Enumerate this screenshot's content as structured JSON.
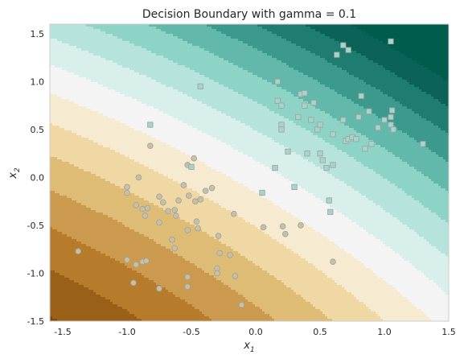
{
  "chart_data": {
    "type": "scatter",
    "title": "Decision Boundary with gamma = 0.1",
    "xlabel": "x",
    "xlabel_sub": "1",
    "ylabel": "x",
    "ylabel_sub": "2",
    "xlim": [
      -1.6,
      1.5
    ],
    "ylim": [
      -1.5,
      1.6
    ],
    "xticks": [
      "-1.5",
      "-1.0",
      "-0.5",
      "0.0",
      "0.5",
      "1.0",
      "1.5"
    ],
    "yticks": [
      "-1.5",
      "-1.0",
      "-0.5",
      "0.0",
      "0.5",
      "1.0",
      "1.5"
    ],
    "grid": false,
    "background": {
      "kind": "filled-contour",
      "colormap": "BrBG",
      "colors": [
        "#7e4a10",
        "#9a6018",
        "#b77b2c",
        "#cb9a4e",
        "#dfbc76",
        "#efd8a3",
        "#f6ebd1",
        "#f3f4f3",
        "#d8efeb",
        "#b6e3db",
        "#8dd3c6",
        "#62b8aa",
        "#3c9a8d",
        "#1e7c70",
        "#0a6356",
        "#005c4d"
      ]
    },
    "series": [
      {
        "marker": "circle",
        "color": "#c8c0a3",
        "points": [
          [
            -1.38,
            -0.77
          ],
          [
            -1.0,
            -0.86
          ],
          [
            -0.93,
            -0.91
          ],
          [
            -0.88,
            -0.88
          ],
          [
            -0.85,
            -0.87
          ],
          [
            -0.95,
            -1.1
          ],
          [
            -0.75,
            -1.16
          ],
          [
            -0.82,
            0.33
          ],
          [
            -0.48,
            0.2
          ],
          [
            -0.53,
            0.13
          ],
          [
            -0.91,
            0.0
          ],
          [
            -1.0,
            -0.1
          ],
          [
            -1.0,
            -0.16
          ],
          [
            -0.93,
            -0.29
          ],
          [
            -0.88,
            -0.33
          ],
          [
            -0.84,
            -0.32
          ],
          [
            -0.75,
            -0.2
          ],
          [
            -0.72,
            -0.26
          ],
          [
            -0.68,
            -0.35
          ],
          [
            -0.63,
            -0.34
          ],
          [
            -0.6,
            -0.24
          ],
          [
            -0.56,
            -0.08
          ],
          [
            -0.52,
            -0.19
          ],
          [
            -0.47,
            -0.25
          ],
          [
            -0.43,
            -0.23
          ],
          [
            -0.39,
            -0.14
          ],
          [
            -0.34,
            -0.11
          ],
          [
            -0.62,
            -0.4
          ],
          [
            -0.86,
            -0.4
          ],
          [
            -0.75,
            -0.47
          ],
          [
            -0.65,
            -0.65
          ],
          [
            -0.53,
            -0.55
          ],
          [
            -0.46,
            -0.46
          ],
          [
            -0.45,
            -0.53
          ],
          [
            -0.63,
            -0.74
          ],
          [
            -0.29,
            -0.61
          ],
          [
            -0.17,
            -0.38
          ],
          [
            -0.28,
            -0.79
          ],
          [
            -0.2,
            -0.81
          ],
          [
            -0.3,
            -0.95
          ],
          [
            -0.3,
            -1.0
          ],
          [
            -0.16,
            -1.03
          ],
          [
            -0.53,
            -1.04
          ],
          [
            -0.53,
            -1.14
          ],
          [
            -0.11,
            -1.33
          ],
          [
            0.06,
            -0.52
          ],
          [
            0.21,
            -0.51
          ],
          [
            0.23,
            -0.59
          ],
          [
            0.35,
            -0.5
          ],
          [
            0.6,
            -0.88
          ]
        ]
      },
      {
        "marker": "square",
        "color": "#a6d4cc",
        "points": [
          [
            -0.82,
            0.55
          ],
          [
            -0.5,
            0.11
          ],
          [
            -0.43,
            0.95
          ],
          [
            0.05,
            -0.16
          ],
          [
            0.15,
            0.1
          ],
          [
            0.17,
            1.0
          ],
          [
            0.17,
            0.8
          ],
          [
            0.2,
            0.75
          ],
          [
            0.2,
            0.55
          ],
          [
            0.2,
            0.5
          ],
          [
            0.25,
            0.27
          ],
          [
            0.3,
            -0.1
          ],
          [
            0.33,
            0.63
          ],
          [
            0.35,
            0.87
          ],
          [
            0.38,
            0.88
          ],
          [
            0.38,
            0.75
          ],
          [
            0.4,
            0.25
          ],
          [
            0.43,
            0.6
          ],
          [
            0.45,
            0.78
          ],
          [
            0.48,
            0.5
          ],
          [
            0.5,
            0.55
          ],
          [
            0.5,
            0.25
          ],
          [
            0.52,
            0.18
          ],
          [
            0.55,
            0.1
          ],
          [
            0.57,
            -0.24
          ],
          [
            0.58,
            -0.36
          ],
          [
            0.6,
            0.13
          ],
          [
            0.6,
            0.45
          ],
          [
            0.63,
            1.28
          ],
          [
            0.68,
            0.6
          ],
          [
            0.68,
            1.38
          ],
          [
            0.7,
            0.38
          ],
          [
            0.72,
            1.33
          ],
          [
            0.72,
            0.4
          ],
          [
            0.75,
            0.42
          ],
          [
            0.78,
            0.4
          ],
          [
            0.8,
            0.63
          ],
          [
            0.82,
            0.85
          ],
          [
            0.85,
            0.3
          ],
          [
            0.88,
            0.69
          ],
          [
            0.9,
            0.35
          ],
          [
            0.95,
            0.52
          ],
          [
            1.0,
            0.6
          ],
          [
            1.05,
            0.63
          ],
          [
            1.05,
            0.55
          ],
          [
            1.06,
            0.7
          ],
          [
            1.07,
            0.5
          ],
          [
            1.05,
            1.42
          ],
          [
            1.3,
            0.35
          ]
        ]
      }
    ]
  }
}
